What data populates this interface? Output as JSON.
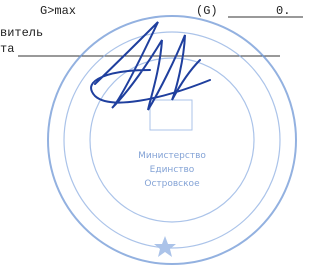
{
  "header": {
    "left": "G>max",
    "middle": "(G)",
    "right": "0."
  },
  "lines": [
    "витель",
    "та"
  ],
  "stamp": {
    "center_lines": [
      "Министерство",
      "Единство",
      "Островское"
    ]
  }
}
